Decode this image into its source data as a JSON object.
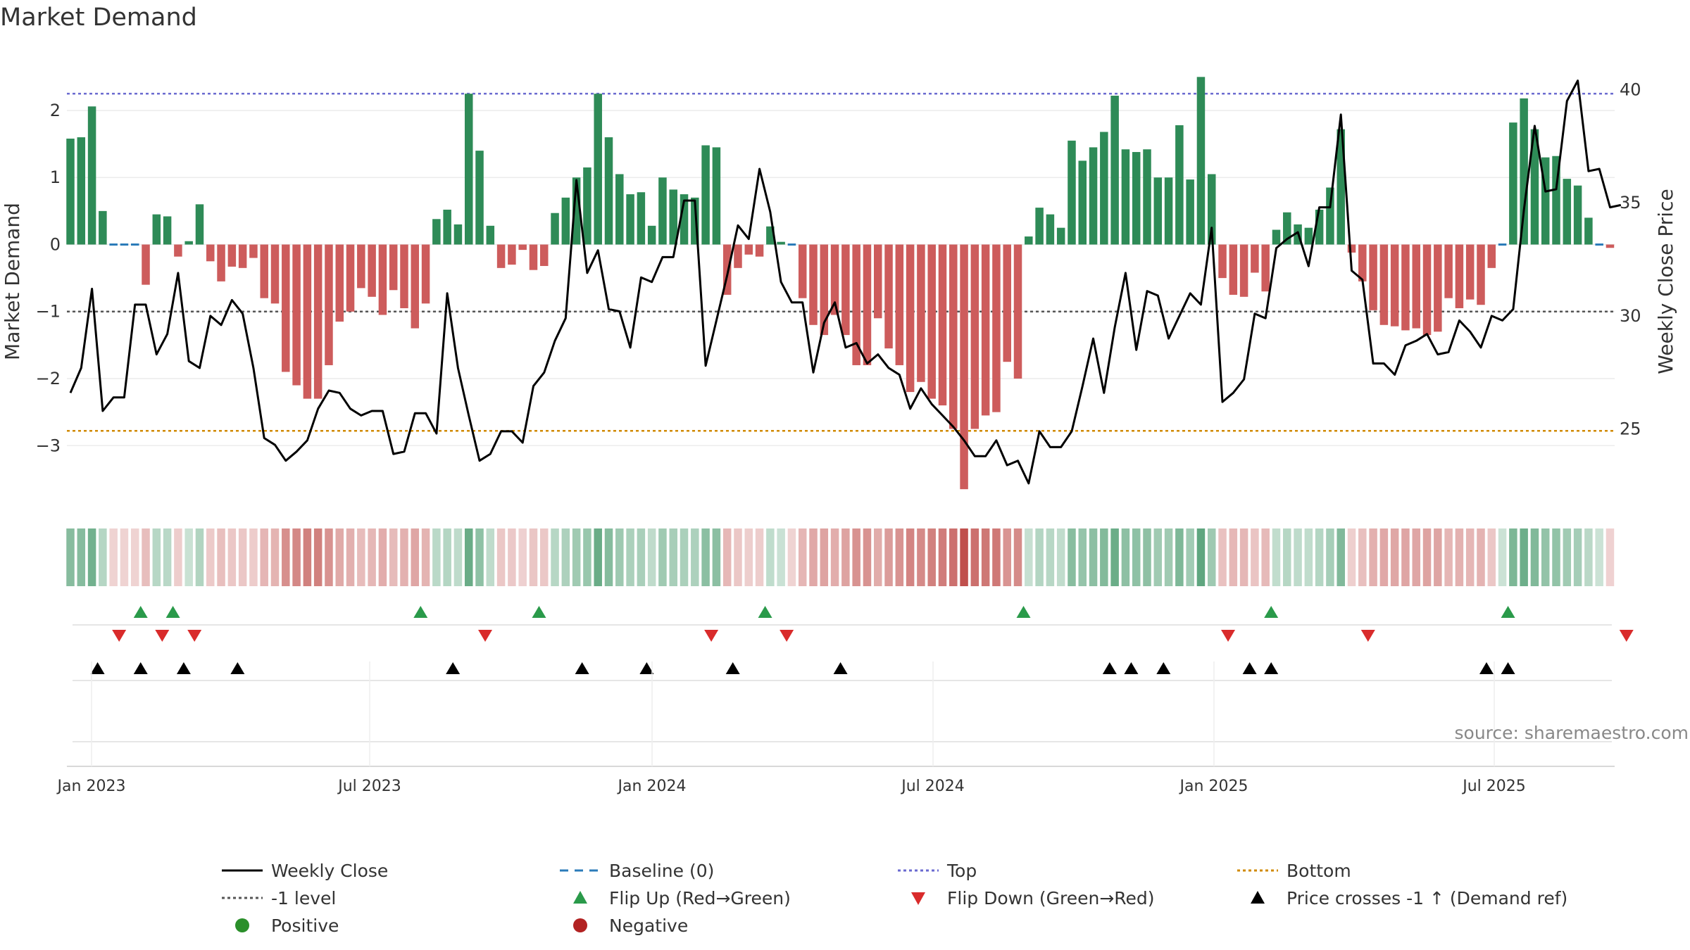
{
  "chart_data": {
    "type": "bar",
    "title": "Market Demand",
    "ylabel_left": "Market Demand",
    "ylabel_right": "Weekly Close Price",
    "source": "source: sharemaestro.com",
    "x_ticks": [
      "Jan 2023",
      "Jul 2023",
      "Jan 2024",
      "Jul 2024",
      "Jan 2025",
      "Jul 2025"
    ],
    "y_ticks_left": [
      "2",
      "1",
      "0",
      "−1",
      "−2",
      "−3"
    ],
    "y_ticks_right": [
      "40",
      "35",
      "30",
      "25"
    ],
    "ylim_left": [
      -3.9,
      2.85
    ],
    "ylim_right": [
      21.6,
      41.6
    ],
    "reference_lines": {
      "top": 2.25,
      "bottom": -2.78,
      "minus_one": -1,
      "baseline": 0
    },
    "demand": [
      1.58,
      1.6,
      2.06,
      0.5,
      -0.02,
      -0.02,
      -0.02,
      -0.6,
      0.45,
      0.42,
      -0.18,
      0.05,
      0.6,
      -0.25,
      -0.55,
      -0.33,
      -0.35,
      -0.2,
      -0.8,
      -0.88,
      -1.9,
      -2.1,
      -2.3,
      -2.3,
      -1.8,
      -1.15,
      -1.0,
      -0.65,
      -0.78,
      -1.05,
      -0.68,
      -0.95,
      -1.25,
      -0.88,
      0.38,
      0.52,
      0.3,
      2.25,
      1.4,
      0.28,
      -0.35,
      -0.3,
      -0.08,
      -0.38,
      -0.32,
      0.47,
      0.7,
      1.0,
      1.15,
      2.25,
      1.6,
      1.05,
      0.75,
      0.78,
      0.28,
      1.0,
      0.82,
      0.75,
      0.7,
      1.48,
      1.45,
      -0.75,
      -0.35,
      -0.15,
      -0.18,
      0.27,
      0.04,
      -0.02,
      -0.8,
      -1.2,
      -1.35,
      -1.05,
      -1.35,
      -1.8,
      -1.8,
      -1.1,
      -1.55,
      -1.8,
      -2.2,
      -2.05,
      -2.3,
      -2.4,
      -2.75,
      -3.65,
      -2.75,
      -2.55,
      -2.5,
      -1.75,
      -2.0,
      0.12,
      0.55,
      0.45,
      0.25,
      1.55,
      1.25,
      1.45,
      1.68,
      2.22,
      1.42,
      1.38,
      1.42,
      1.0,
      1.0,
      1.78,
      0.97,
      2.5,
      1.05,
      -0.5,
      -0.75,
      -0.78,
      -0.42,
      -0.7,
      0.22,
      0.48,
      0.3,
      0.25,
      0.52,
      0.85,
      1.72,
      -0.12,
      -0.55,
      -0.98,
      -1.2,
      -1.22,
      -1.28,
      -1.25,
      -1.35,
      -1.3,
      -0.8,
      -0.95,
      -0.82,
      -0.9,
      -0.35,
      0.0,
      1.82,
      2.18,
      1.72,
      1.3,
      1.32,
      0.98,
      0.88,
      0.4,
      0.0,
      -0.05
    ],
    "price": [
      26.6,
      27.7,
      31.2,
      25.8,
      26.4,
      26.4,
      30.5,
      30.5,
      28.3,
      29.2,
      31.9,
      28.0,
      27.7,
      30.0,
      29.6,
      30.7,
      30.1,
      27.7,
      24.6,
      24.3,
      23.6,
      24.0,
      24.5,
      25.9,
      26.7,
      26.6,
      25.9,
      25.6,
      25.8,
      25.8,
      23.9,
      24.0,
      25.7,
      25.7,
      24.8,
      31.0,
      27.7,
      25.6,
      23.6,
      23.9,
      24.9,
      24.9,
      24.4,
      26.9,
      27.5,
      28.9,
      29.9,
      36.0,
      31.9,
      32.9,
      30.3,
      30.2,
      28.6,
      31.7,
      31.5,
      32.6,
      32.6,
      35.1,
      35.1,
      27.8,
      29.8,
      31.8,
      34.0,
      33.4,
      36.5,
      34.6,
      31.5,
      30.6,
      30.6,
      27.5,
      29.7,
      30.6,
      28.6,
      28.8,
      27.9,
      28.3,
      27.7,
      27.4,
      25.9,
      26.8,
      26.1,
      25.6,
      25.1,
      24.5,
      23.8,
      23.8,
      24.5,
      23.4,
      23.6,
      22.6,
      24.9,
      24.2,
      24.2,
      24.9,
      26.9,
      29.0,
      26.6,
      29.5,
      31.9,
      28.5,
      31.1,
      30.9,
      29.0,
      30.0,
      31.0,
      30.5,
      33.9,
      26.2,
      26.6,
      27.2,
      30.1,
      29.9,
      33.0,
      33.4,
      33.7,
      32.2,
      34.8,
      34.8,
      38.9,
      32.0,
      31.6,
      27.9,
      27.9,
      27.4,
      28.7,
      28.9,
      29.2,
      28.3,
      28.4,
      29.8,
      29.3,
      28.6,
      30.0,
      29.8,
      30.3,
      34.7,
      38.4,
      35.5,
      35.6,
      39.5,
      40.4,
      36.4,
      36.5,
      34.8,
      34.9
    ],
    "flip_up_weeks": [
      6,
      9,
      32,
      43,
      64,
      88,
      111,
      133
    ],
    "flip_down_weeks": [
      4,
      8,
      11,
      38,
      59,
      66,
      107,
      120,
      144
    ],
    "price_cross_weeks": [
      2,
      6,
      10,
      15,
      35,
      47,
      53,
      61,
      71,
      96,
      98,
      101,
      109,
      111,
      131,
      133
    ],
    "legend": [
      {
        "label": "Weekly Close",
        "kind": "line-solid",
        "color": "#000000"
      },
      {
        "label": "Baseline (0)",
        "kind": "line-dash",
        "color": "#2b7bb9"
      },
      {
        "label": "Top",
        "kind": "line-dot",
        "color": "#6a6ad0"
      },
      {
        "label": "Bottom",
        "kind": "line-dot",
        "color": "#d08a00"
      },
      {
        "label": "-1 level",
        "kind": "line-dot",
        "color": "#555555"
      },
      {
        "label": "Flip Up (Red→Green)",
        "kind": "tri-up",
        "color": "#2a9a4a"
      },
      {
        "label": "Flip Down (Green→Red)",
        "kind": "tri-down",
        "color": "#d92b2b"
      },
      {
        "label": "Price crosses -1 ↑ (Demand ref)",
        "kind": "tri-up",
        "color": "#000000"
      },
      {
        "label": "Positive",
        "kind": "dot",
        "color": "#2a8f2a"
      },
      {
        "label": "Negative",
        "kind": "dot",
        "color": "#b22222"
      }
    ],
    "colors": {
      "positive_bar": "#2e8b57",
      "negative_bar": "#cd5c5c",
      "price_line": "#000000",
      "flip_up": "#2a9a4a",
      "flip_down": "#d92b2b",
      "cross": "#000000"
    }
  }
}
